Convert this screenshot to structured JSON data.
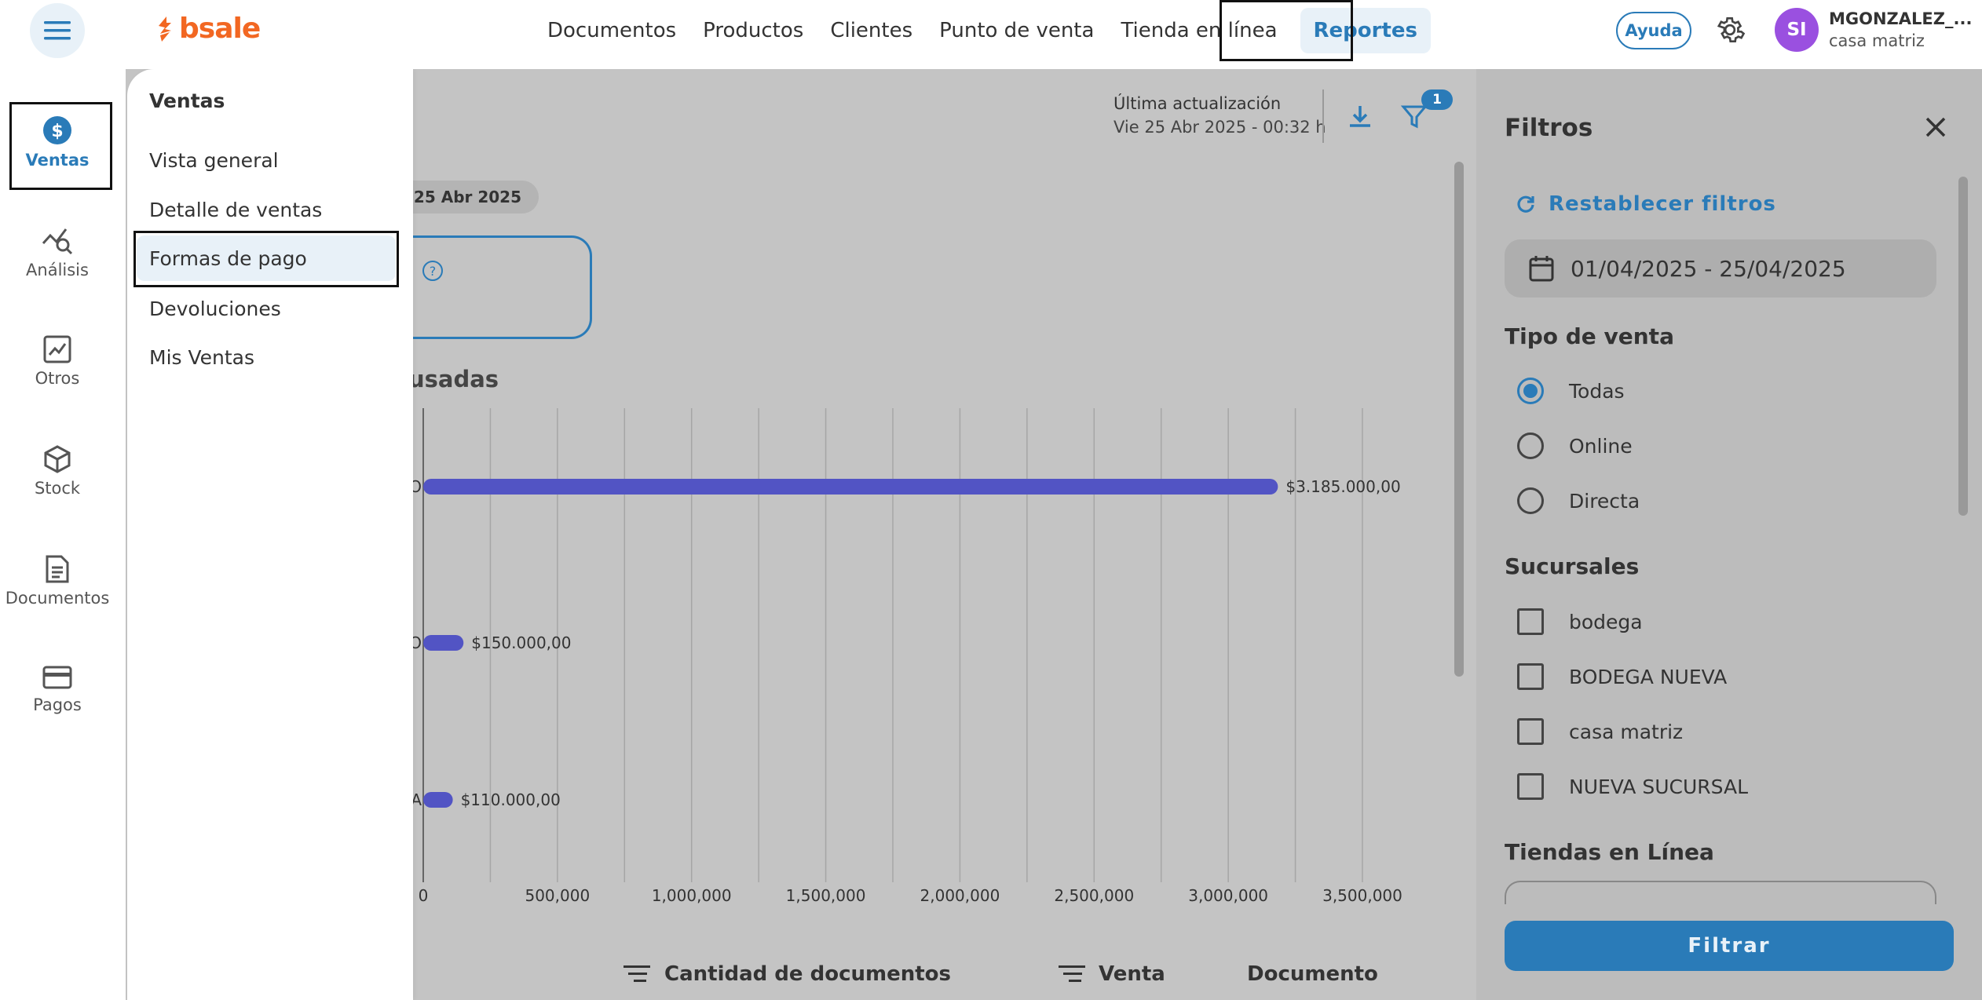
{
  "header": {
    "brand": "bsale",
    "nav": [
      {
        "label": "Documentos"
      },
      {
        "label": "Productos"
      },
      {
        "label": "Clientes"
      },
      {
        "label": "Punto de venta"
      },
      {
        "label": "Tienda en línea"
      },
      {
        "label": "Reportes"
      }
    ],
    "help_label": "Ayuda",
    "avatar_initials": "SI",
    "user_name": "MGONZALEZ_...",
    "user_store": "casa matriz"
  },
  "sidebar": {
    "items": [
      {
        "label": "Ventas",
        "icon": "dollar-icon"
      },
      {
        "label": "Análisis",
        "icon": "analysis-icon"
      },
      {
        "label": "Otros",
        "icon": "chart-icon"
      },
      {
        "label": "Stock",
        "icon": "box-icon"
      },
      {
        "label": "Documentos",
        "icon": "document-icon"
      },
      {
        "label": "Pagos",
        "icon": "card-icon"
      }
    ]
  },
  "submenu": {
    "title": "Ventas",
    "items": [
      {
        "label": "Vista general"
      },
      {
        "label": "Detalle de ventas"
      },
      {
        "label": "Formas de pago"
      },
      {
        "label": "Devoluciones"
      },
      {
        "label": "Mis Ventas"
      }
    ]
  },
  "report": {
    "update_label": "Última actualización",
    "update_value": "Vie 25 Abr 2025 - 00:32 h",
    "filter_count": "1",
    "date_chip": "- 25 Abr 2025",
    "help_mark": "?",
    "section_title": "usadas",
    "col_docs": "Cantidad de documentos",
    "col_sale": "Venta",
    "col_doc": "Documento"
  },
  "chart_data": {
    "type": "bar",
    "orientation": "horizontal",
    "category_fragments": [
      "O",
      "O",
      "A"
    ],
    "values": [
      3185000,
      150000,
      110000
    ],
    "value_labels": [
      "$3.185.000,00",
      "$150.000,00",
      "$110.000,00"
    ],
    "ticks": [
      "0",
      "500,000",
      "1,000,000",
      "1,500,000",
      "2,000,000",
      "2,500,000",
      "3,000,000",
      "3,500,000"
    ],
    "xlim": [
      0,
      3500000
    ],
    "grid": true,
    "bar_color": "#5254c4"
  },
  "filters": {
    "title": "Filtros",
    "reset_label": "Restablecer filtros",
    "date_range": "01/04/2025 - 25/04/2025",
    "tipo_title": "Tipo de venta",
    "tipo_options": [
      {
        "label": "Todas",
        "selected": true
      },
      {
        "label": "Online",
        "selected": false
      },
      {
        "label": "Directa",
        "selected": false
      }
    ],
    "sucursales_title": "Sucursales",
    "sucursales": [
      {
        "label": "bodega",
        "checked": false
      },
      {
        "label": "BODEGA NUEVA",
        "checked": false
      },
      {
        "label": "casa matriz",
        "checked": false
      },
      {
        "label": "NUEVA SUCURSAL",
        "checked": false
      }
    ],
    "tiendas_title": "Tiendas en Línea",
    "filter_button": "Filtrar"
  },
  "colors": {
    "accent": "#2a7bb8",
    "brand": "#f26722",
    "bar": "#5254c4",
    "avatar": "#9a50e0"
  }
}
